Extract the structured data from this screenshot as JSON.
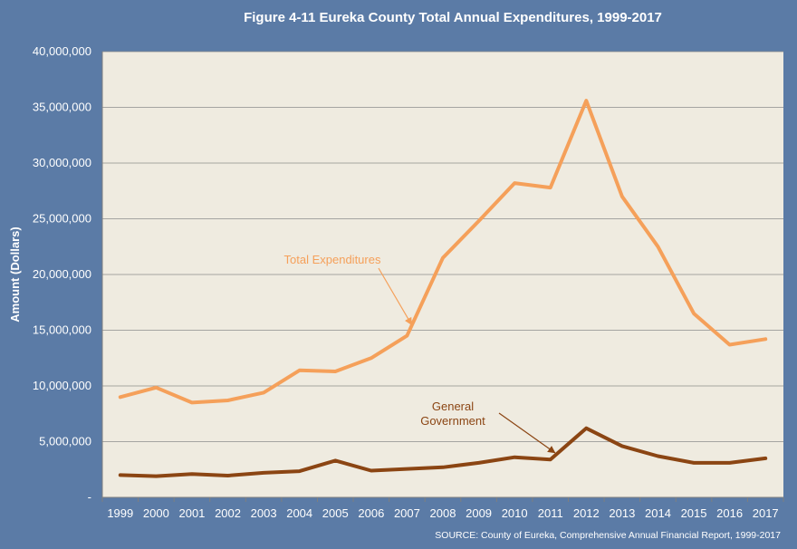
{
  "chart_data": {
    "type": "line",
    "title": "Figure 4-11 Eureka County Total Annual Expenditures, 1999-2017",
    "ylabel": "Amount (Dollars)",
    "xlabel": "",
    "source": "SOURCE: County of Eureka, Comprehensive Annual Financial Report, 1999-2017",
    "categories": [
      "1999",
      "2000",
      "2001",
      "2002",
      "2003",
      "2004",
      "2005",
      "2006",
      "2007",
      "2008",
      "2009",
      "2010",
      "2011",
      "2012",
      "2013",
      "2014",
      "2015",
      "2016",
      "2017"
    ],
    "ylim": [
      0,
      40000000
    ],
    "yticks": [
      0,
      5000000,
      10000000,
      15000000,
      20000000,
      25000000,
      30000000,
      35000000,
      40000000
    ],
    "ytick_labels": [
      "-",
      "5,000,000",
      "10,000,000",
      "15,000,000",
      "20,000,000",
      "25,000,000",
      "30,000,000",
      "35,000,000",
      "40,000,000"
    ],
    "grid": true,
    "series": [
      {
        "name": "Total Expenditures",
        "color": "#f5a05a",
        "values": [
          9000000,
          9850000,
          8500000,
          8700000,
          9400000,
          11400000,
          11300000,
          12500000,
          14500000,
          21500000,
          24800000,
          28200000,
          27800000,
          35600000,
          27000000,
          22500000,
          16500000,
          13700000,
          14200000
        ]
      },
      {
        "name": "General Government",
        "color": "#8b4513",
        "values": [
          2000000,
          1900000,
          2100000,
          1950000,
          2200000,
          2350000,
          3300000,
          2400000,
          2550000,
          2700000,
          3100000,
          3600000,
          3400000,
          6200000,
          4600000,
          3700000,
          3100000,
          3100000,
          3500000
        ]
      }
    ],
    "annotations": [
      {
        "lines": [
          "Total Expenditures"
        ],
        "color": "#f5a05a",
        "target_year": "2007",
        "target_value": 15500000
      },
      {
        "lines": [
          "General",
          "Government"
        ],
        "color": "#8b4513",
        "target_year": "2011",
        "target_value": 4000000
      }
    ]
  }
}
